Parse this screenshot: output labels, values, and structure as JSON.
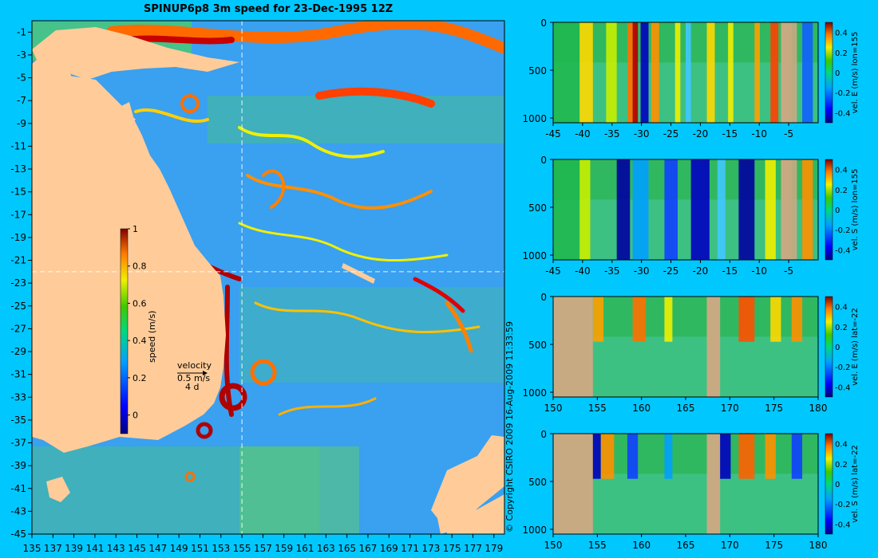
{
  "title": "SPINUP6p8 3m speed for 23-Dec-1995 12Z",
  "copyright": "© Copyright CSIRO 2009   16-Aug-2009 11:33:59",
  "colors": {
    "background": "#00c8ff",
    "land": "#ffcc99",
    "mask": "#c8aa82"
  },
  "chart_data": [
    {
      "type": "heatmap",
      "name": "map",
      "x_ticks": [
        "135",
        "137",
        "139",
        "141",
        "143",
        "145",
        "147",
        "149",
        "151",
        "153",
        "155",
        "157",
        "159",
        "161",
        "163",
        "165",
        "167",
        "169",
        "171",
        "173",
        "175",
        "177",
        "179"
      ],
      "y_ticks": [
        "-1",
        "-3",
        "-5",
        "-7",
        "-9",
        "-11",
        "-13",
        "-15",
        "-17",
        "-19",
        "-21",
        "-23",
        "-25",
        "-27",
        "-29",
        "-31",
        "-33",
        "-35",
        "-37",
        "-39",
        "-41",
        "-43",
        "-45"
      ],
      "xlim": [
        135,
        180
      ],
      "ylim": [
        -45,
        0
      ],
      "colorbar": {
        "label": "speed (m/s)",
        "ticks": [
          "1",
          "0.8",
          "0.6",
          "0.4",
          "0.2",
          "0"
        ],
        "range": [
          -0.1,
          1
        ]
      },
      "velocity_key": {
        "label1": "velocity",
        "label2": "0.5 m/s",
        "label3": "4 d"
      },
      "section_lines": {
        "lon": 155,
        "lat": -22
      }
    },
    {
      "type": "heatmap",
      "name": "panel1",
      "cb_label": "vel. E (m/s) lon=155",
      "x_ticks": [
        "-45",
        "-40",
        "-35",
        "-30",
        "-25",
        "-20",
        "-15",
        "-10",
        "-5"
      ],
      "xlim": [
        -45,
        0
      ],
      "y_ticks": [
        "0",
        "500",
        "1000"
      ],
      "ylim": [
        0,
        1050
      ],
      "cb_ticks": [
        "0.4",
        "0.2",
        "0",
        "-0.2",
        "-0.4"
      ]
    },
    {
      "type": "heatmap",
      "name": "panel2",
      "cb_label": "vel. S (m/s) lon=155",
      "x_ticks": [
        "-45",
        "-40",
        "-35",
        "-30",
        "-25",
        "-20",
        "-15",
        "-10",
        "-5"
      ],
      "xlim": [
        -45,
        0
      ],
      "y_ticks": [
        "0",
        "500",
        "1000"
      ],
      "ylim": [
        0,
        1050
      ],
      "cb_ticks": [
        "0.4",
        "0.2",
        "0",
        "-0.2",
        "-0.4"
      ]
    },
    {
      "type": "heatmap",
      "name": "panel3",
      "cb_label": "vel. E (m/s) lat=-22",
      "x_ticks": [
        "150",
        "155",
        "160",
        "165",
        "170",
        "175",
        "180"
      ],
      "xlim": [
        150,
        180
      ],
      "y_ticks": [
        "0",
        "500",
        "1000"
      ],
      "ylim": [
        0,
        1050
      ],
      "cb_ticks": [
        "0.4",
        "0.2",
        "0",
        "-0.2",
        "-0.4"
      ]
    },
    {
      "type": "heatmap",
      "name": "panel4",
      "cb_label": "vel. S (m/s) lat=-22",
      "x_ticks": [
        "150",
        "155",
        "160",
        "165",
        "170",
        "175",
        "180"
      ],
      "xlim": [
        150,
        180
      ],
      "y_ticks": [
        "0",
        "500",
        "1000"
      ],
      "ylim": [
        0,
        1050
      ],
      "cb_ticks": [
        "0.4",
        "0.2",
        "0",
        "-0.2",
        "-0.4"
      ]
    }
  ]
}
